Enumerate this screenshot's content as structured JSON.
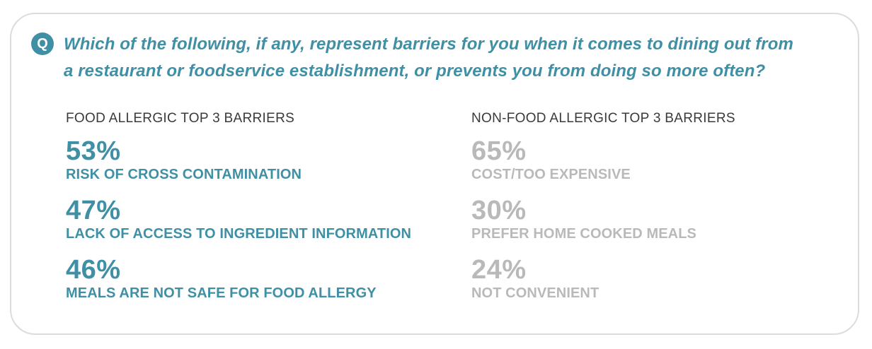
{
  "question": {
    "badge": "Q",
    "line1": "Which of the following, if any, represent barriers for you when it comes to dining out from",
    "line2": "a restaurant or foodservice establishment, or prevents you from doing so more often?"
  },
  "food_allergic": {
    "title": "FOOD ALLERGIC TOP 3 BARRIERS",
    "items": [
      {
        "pct": "53%",
        "label": "RISK OF CROSS CONTAMINATION"
      },
      {
        "pct": "47%",
        "label": "LACK OF ACCESS TO INGREDIENT INFORMATION"
      },
      {
        "pct": "46%",
        "label": "MEALS ARE NOT SAFE FOR FOOD ALLERGY"
      }
    ]
  },
  "non_food_allergic": {
    "title": "NON-FOOD ALLERGIC TOP 3 BARRIERS",
    "items": [
      {
        "pct": "65%",
        "label": "COST/TOO EXPENSIVE"
      },
      {
        "pct": "30%",
        "label": "PREFER HOME COOKED MEALS"
      },
      {
        "pct": "24%",
        "label": "NOT CONVENIENT"
      }
    ]
  },
  "colors": {
    "accent": "#3f8fa5",
    "muted": "#b9b9b9",
    "text": "#3a3a3a",
    "border": "#dcdcdc"
  }
}
